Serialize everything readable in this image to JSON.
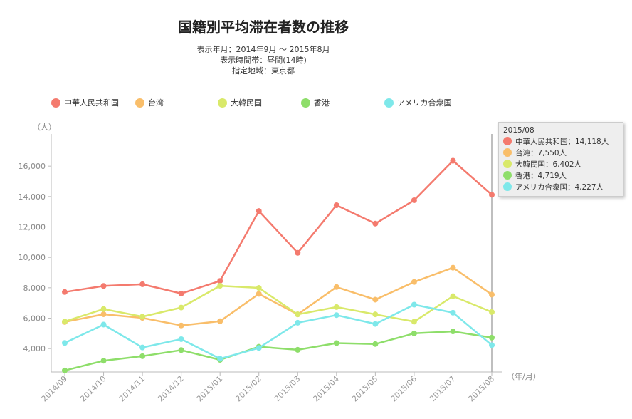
{
  "title": "国籍別平均滞在者数の推移",
  "subtitle_lines": [
    "表示年月：2014年9月 ～ 2015年8月",
    "表示時間帯：昼間(14時)",
    "指定地域：東京都"
  ],
  "legend": [
    {
      "label": "中華人民共和国",
      "color": "#f47a6e"
    },
    {
      "label": "台湾",
      "color": "#f9be6a"
    },
    {
      "label": "大韓民国",
      "color": "#d9e96a"
    },
    {
      "label": "香港",
      "color": "#8ede6a"
    },
    {
      "label": "アメリカ合衆国",
      "color": "#7ee8ea"
    }
  ],
  "tooltip": {
    "header": "2015/08",
    "rows": [
      "中華人民共和国：14,118人",
      "台湾：7,550人",
      "大韓民国：6,402人",
      "香港：4,719人",
      "アメリカ合衆国：4,227人"
    ]
  },
  "chart_data": {
    "type": "line",
    "y_unit": "（人）",
    "x_unit": "（年/月）",
    "ylim": [
      2800,
      17500
    ],
    "yticks": [
      4000,
      6000,
      8000,
      10000,
      12000,
      14000,
      16000
    ],
    "ytick_labels": [
      "4,000",
      "6,000",
      "8,000",
      "10,000",
      "12,000",
      "14,000",
      "16,000"
    ],
    "grid": false,
    "categories": [
      "2014/09",
      "2014/10",
      "2014/11",
      "2014/12",
      "2015/01",
      "2015/02",
      "2015/03",
      "2015/04",
      "2015/05",
      "2015/06",
      "2015/07",
      "2015/08"
    ],
    "series": [
      {
        "name": "中華人民共和国",
        "color": "#f47a6e",
        "values": [
          7720,
          8120,
          8230,
          7620,
          8450,
          13050,
          10300,
          13430,
          12220,
          13760,
          16360,
          14118
        ]
      },
      {
        "name": "台湾",
        "color": "#f9be6a",
        "values": [
          5750,
          6260,
          6020,
          5520,
          5800,
          7600,
          6250,
          8050,
          7220,
          8380,
          9320,
          7550
        ]
      },
      {
        "name": "大韓民国",
        "color": "#d9e96a",
        "values": [
          5780,
          6600,
          6100,
          6700,
          8130,
          7990,
          6250,
          6730,
          6250,
          5770,
          7450,
          6402
        ]
      },
      {
        "name": "香港",
        "color": "#8ede6a",
        "values": [
          2560,
          3200,
          3500,
          3900,
          3260,
          4120,
          3920,
          4360,
          4300,
          5000,
          5130,
          4719
        ]
      },
      {
        "name": "アメリカ合衆国",
        "color": "#7ee8ea",
        "values": [
          4370,
          5580,
          4070,
          4620,
          3330,
          4040,
          5700,
          6200,
          5620,
          6890,
          6360,
          4227
        ]
      }
    ]
  }
}
